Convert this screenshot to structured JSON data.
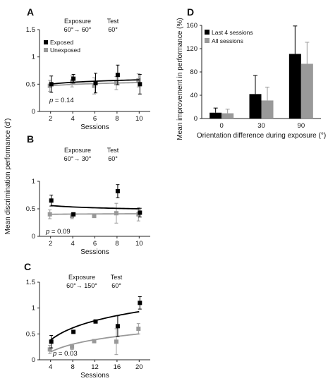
{
  "figure": {
    "shared_ylabel": "Mean discrimination performance (d')"
  },
  "chart_data": [
    {
      "panel": "A",
      "type": "line",
      "xlabel": "Sessions",
      "ylabel": "",
      "x": [
        2,
        4,
        6,
        8,
        10
      ],
      "xlim": [
        1,
        11
      ],
      "ylim": [
        0,
        1.5
      ],
      "xticks": [
        "2",
        "4",
        "6",
        "8",
        "10"
      ],
      "yticks": [
        "0",
        "0.5",
        "1",
        "1.5"
      ],
      "exposure_label": "Exposure",
      "exposure_value": "60°→ 60°",
      "test_label": "Test",
      "test_value": "60°",
      "p_label": "p",
      "p_value": " = 0.14",
      "legend_position": "top-left",
      "series": [
        {
          "name": "Exposed",
          "color": "#000000",
          "values": [
            0.5,
            0.6,
            0.52,
            0.67,
            0.5
          ],
          "err": [
            0.15,
            0.08,
            0.18,
            0.18,
            0.18
          ],
          "fit": [
            0.5,
            0.58
          ]
        },
        {
          "name": "Unexposed",
          "color": "#999999",
          "values": [
            0.47,
            0.55,
            0.47,
            0.52,
            0.57
          ],
          "err": [
            0.1,
            0.1,
            0.15,
            0.12,
            0.12
          ],
          "fit": [
            0.47,
            0.53
          ]
        }
      ]
    },
    {
      "panel": "B",
      "type": "line",
      "xlabel": "Sessions",
      "ylabel": "",
      "x": [
        2,
        4,
        6,
        8,
        10
      ],
      "xlim": [
        1,
        11
      ],
      "ylim": [
        0,
        1
      ],
      "xticks": [
        "2",
        "4",
        "6",
        "8",
        "10"
      ],
      "yticks": [
        "0",
        "0.5",
        "1"
      ],
      "exposure_label": "Exposure",
      "exposure_value": "60°→ 30°",
      "test_label": "Test",
      "test_value": "60°",
      "p_label": "p",
      "p_value": " = 0.09",
      "series": [
        {
          "name": "",
          "color": "#000000",
          "values": [
            0.65,
            0.4,
            null,
            0.82,
            0.43
          ],
          "err": [
            0.1,
            0.02,
            null,
            0.12,
            0.08
          ],
          "fit": [
            0.56,
            0.5
          ]
        },
        {
          "name": "",
          "color": "#999999",
          "values": [
            0.4,
            0.37,
            0.37,
            0.42,
            0.4
          ],
          "err": [
            0.08,
            0.05,
            0.02,
            0.18,
            0.12
          ],
          "fit": [
            0.4,
            0.41
          ]
        }
      ]
    },
    {
      "panel": "C",
      "type": "line",
      "xlabel": "Sessions",
      "ylabel": "",
      "x": [
        4,
        8,
        12,
        16,
        20
      ],
      "xlim": [
        2,
        22
      ],
      "ylim": [
        0,
        1.5
      ],
      "xticks": [
        "4",
        "8",
        "12",
        "16",
        "20"
      ],
      "yticks": [
        "0",
        "0.5",
        "1",
        "1.5"
      ],
      "exposure_label": "Exposure",
      "exposure_value": "60°→ 150°",
      "test_label": "Test",
      "test_value": "60°",
      "p_label": "p",
      "p_value": " = 0.03",
      "series": [
        {
          "name": "",
          "color": "#000000",
          "values": [
            0.35,
            0.54,
            0.74,
            0.65,
            1.1
          ],
          "err": [
            0.12,
            0.03,
            0.02,
            0.2,
            0.12
          ],
          "fit": [
            0.38,
            0.93
          ]
        },
        {
          "name": "",
          "color": "#999999",
          "values": [
            0.2,
            0.25,
            0.36,
            0.35,
            0.6
          ],
          "err": [
            0.08,
            0.05,
            0.02,
            0.25,
            0.1
          ],
          "fit": [
            0.15,
            0.5
          ]
        }
      ]
    },
    {
      "panel": "D",
      "type": "bar",
      "categories": [
        "0",
        "30",
        "90"
      ],
      "xlabel": "Orientation difference during exposure (°)",
      "ylabel": "Mean improvement in performance (%)",
      "ylim": [
        0,
        160
      ],
      "yticks": [
        "0",
        "40",
        "80",
        "120",
        "160"
      ],
      "legend_position": "top-left",
      "series": [
        {
          "name": "Last 4 sessions",
          "color": "#000000",
          "values": [
            10,
            42,
            111
          ],
          "err": [
            8,
            32,
            48
          ]
        },
        {
          "name": "All sessions",
          "color": "#999999",
          "values": [
            9,
            31,
            94
          ],
          "err": [
            7,
            23,
            37
          ]
        }
      ]
    }
  ]
}
